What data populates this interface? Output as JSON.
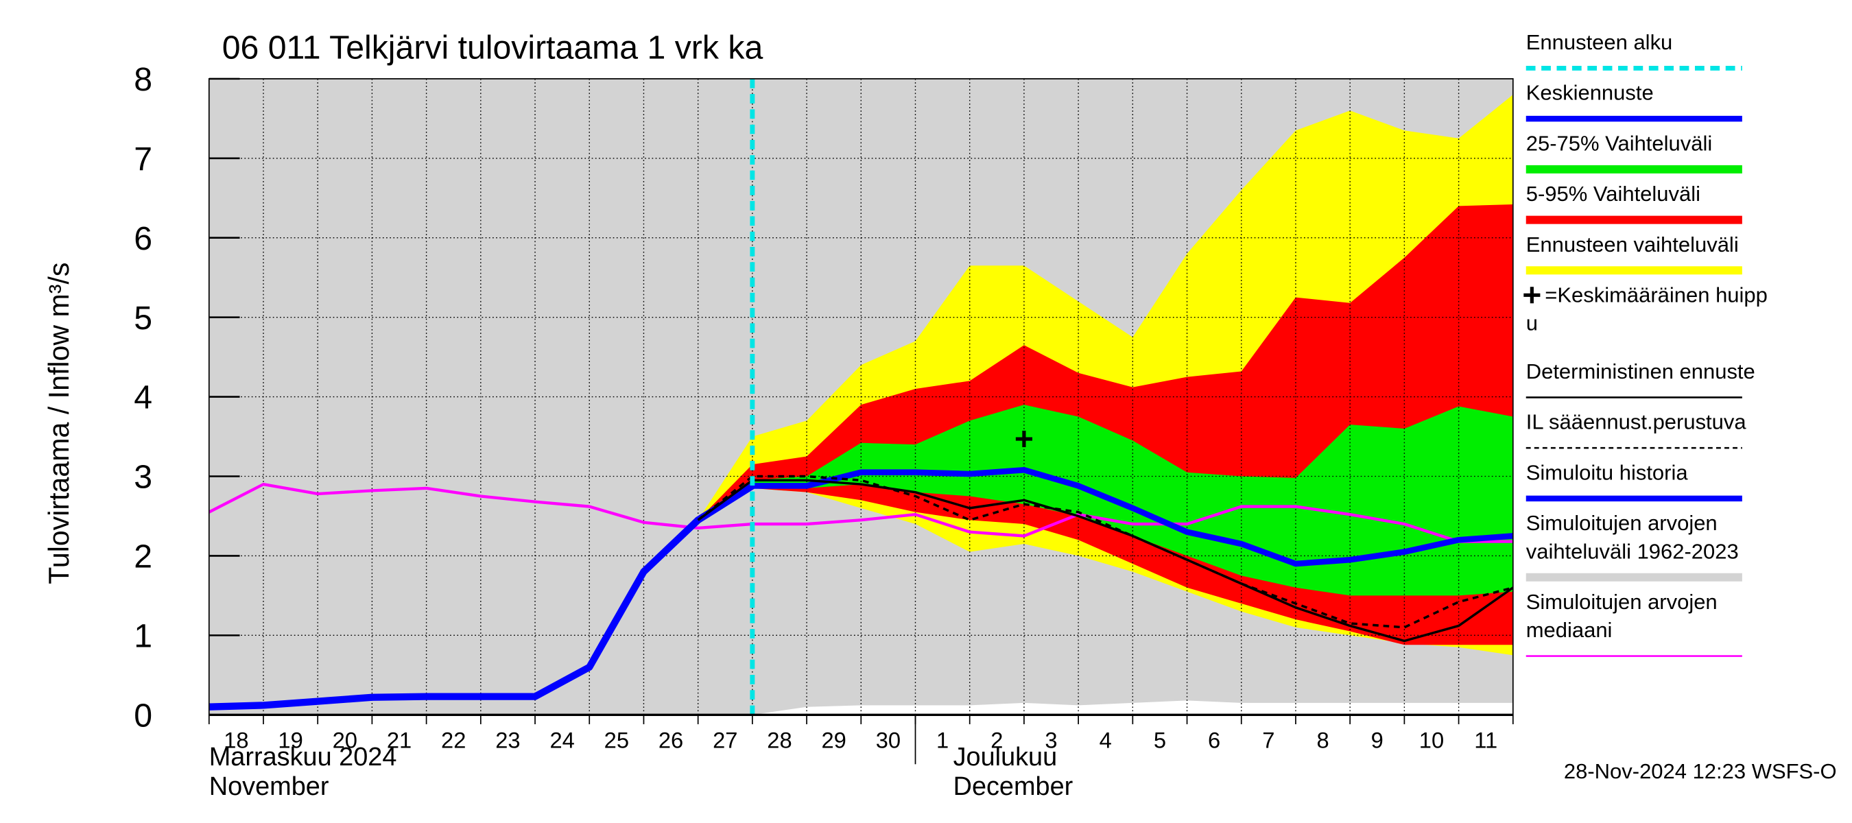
{
  "chart_data": {
    "type": "line",
    "title": "06 011 Telkjärvi tulovirtaama 1 vrk ka",
    "y_label": "Tulovirtaama / Inflow   m³/s",
    "categories": [
      "18",
      "19",
      "20",
      "21",
      "22",
      "23",
      "24",
      "25",
      "26",
      "27",
      "28",
      "29",
      "30",
      "1",
      "2",
      "3",
      "4",
      "5",
      "6",
      "7",
      "8",
      "9",
      "10",
      "11",
      null
    ],
    "month_labels": [
      {
        "lines": [
          "Marraskuu 2024",
          "November"
        ],
        "at_index": 0
      },
      {
        "lines": [
          "Joulukuu",
          "December"
        ],
        "at_index": 14
      }
    ],
    "month_separator_index": 13,
    "ylim": [
      0,
      8
    ],
    "yticks": [
      0,
      1,
      2,
      3,
      4,
      5,
      6,
      7,
      8
    ],
    "grid": true,
    "footer": "28-Nov-2024 12:23 WSFS-O",
    "series": [
      {
        "name": [
          "Ennusteen alku"
        ],
        "kind": "vline",
        "color": "#00e5e5",
        "at_index": 10
      },
      {
        "name": [
          "Keskiennuste"
        ],
        "kind": "line",
        "color": "#0000ff",
        "width": 5,
        "values": [
          null,
          null,
          null,
          null,
          null,
          null,
          null,
          null,
          null,
          null,
          2.88,
          2.88,
          3.05,
          3.05,
          3.03,
          3.08,
          2.88,
          2.6,
          2.3,
          2.15,
          1.9,
          1.95,
          2.05,
          2.2,
          2.25
        ]
      },
      {
        "name": [
          "25-75% Vaihteluväli"
        ],
        "kind": "band",
        "color": "#00ee00",
        "upper": [
          null,
          null,
          null,
          null,
          null,
          null,
          null,
          null,
          null,
          2.45,
          2.95,
          3.0,
          3.42,
          3.4,
          3.7,
          3.9,
          3.75,
          3.45,
          3.05,
          3.0,
          2.98,
          3.65,
          3.6,
          3.88,
          3.75
        ],
        "lower": [
          null,
          null,
          null,
          null,
          null,
          null,
          null,
          null,
          null,
          2.45,
          2.85,
          2.85,
          2.9,
          2.8,
          2.75,
          2.65,
          2.5,
          2.25,
          2.0,
          1.75,
          1.6,
          1.5,
          1.5,
          1.5,
          1.55
        ]
      },
      {
        "name": [
          "5-95% Vaihteluväli"
        ],
        "kind": "band",
        "color": "#ff0000",
        "upper": [
          null,
          null,
          null,
          null,
          null,
          null,
          null,
          null,
          null,
          2.45,
          3.15,
          3.25,
          3.9,
          4.1,
          4.2,
          4.65,
          4.3,
          4.12,
          4.25,
          4.32,
          5.25,
          5.18,
          5.75,
          6.4,
          6.42
        ],
        "lower": [
          null,
          null,
          null,
          null,
          null,
          null,
          null,
          null,
          null,
          2.45,
          2.85,
          2.8,
          2.7,
          2.55,
          2.45,
          2.4,
          2.2,
          1.9,
          1.6,
          1.4,
          1.2,
          1.05,
          0.88,
          0.88,
          0.88
        ]
      },
      {
        "name": [
          "Ennusteen vaihteluväli"
        ],
        "kind": "band",
        "color": "#ffff00",
        "upper": [
          null,
          null,
          null,
          null,
          null,
          null,
          null,
          null,
          null,
          2.45,
          3.5,
          3.7,
          4.4,
          4.7,
          5.65,
          5.65,
          5.2,
          4.75,
          5.8,
          6.6,
          7.35,
          7.6,
          7.35,
          7.25,
          7.8
        ],
        "lower": [
          null,
          null,
          null,
          null,
          null,
          null,
          null,
          null,
          null,
          2.45,
          2.85,
          2.8,
          2.6,
          2.4,
          2.05,
          2.15,
          2.0,
          1.8,
          1.55,
          1.3,
          1.1,
          1.0,
          0.9,
          0.85,
          0.75
        ]
      },
      {
        "name": [
          "=Keskimääräinen huipp",
          "u"
        ],
        "kind": "peak",
        "color": "#000000",
        "at_index": 15,
        "value": 3.47
      },
      {
        "name": [
          "Deterministinen ennuste"
        ],
        "kind": "line",
        "color": "#000000",
        "width": 2,
        "values": [
          null,
          null,
          null,
          null,
          null,
          null,
          null,
          null,
          null,
          2.45,
          2.95,
          2.95,
          2.9,
          2.8,
          2.6,
          2.7,
          2.5,
          2.25,
          1.95,
          1.65,
          1.35,
          1.12,
          0.93,
          1.12,
          1.6
        ]
      },
      {
        "name": [
          "IL sääennust.perustuva"
        ],
        "kind": "line",
        "color": "#000000",
        "width": 2,
        "dashed": true,
        "values": [
          null,
          null,
          null,
          null,
          null,
          null,
          null,
          null,
          null,
          2.45,
          3.0,
          3.0,
          2.95,
          2.75,
          2.45,
          2.65,
          2.55,
          2.25,
          1.95,
          1.65,
          1.4,
          1.15,
          1.1,
          1.42,
          1.6
        ]
      },
      {
        "name": [
          "Simuloitu historia"
        ],
        "kind": "line",
        "color": "#0000ff",
        "width": 6,
        "values": [
          0.1,
          0.12,
          0.17,
          0.22,
          0.23,
          0.23,
          0.23,
          0.6,
          1.8,
          2.45,
          2.88,
          null,
          null,
          null,
          null,
          null,
          null,
          null,
          null,
          null,
          null,
          null,
          null,
          null,
          null
        ]
      },
      {
        "name": [
          "Simuloitujen arvojen",
          "vaihteluväli 1962-2023"
        ],
        "kind": "band",
        "color": "#d3d3d3",
        "upper": [
          8,
          8,
          8,
          8,
          8,
          8,
          8,
          8,
          8,
          8,
          8,
          8,
          8,
          8,
          8,
          8,
          8,
          8,
          8,
          8,
          8,
          8,
          8,
          8,
          8
        ],
        "lower": [
          0,
          0,
          0,
          0,
          0,
          0,
          0,
          0,
          0,
          0,
          0,
          0.1,
          0.12,
          0.12,
          0.12,
          0.15,
          0.12,
          0.15,
          0.18,
          0.15,
          0.15,
          0.15,
          0.15,
          0.15,
          0.15
        ]
      },
      {
        "name": [
          "Simuloitujen arvojen",
          "mediaani"
        ],
        "kind": "line",
        "color": "#ff00ff",
        "width": 2.5,
        "values": [
          2.55,
          2.9,
          2.78,
          2.82,
          2.85,
          2.75,
          2.68,
          2.62,
          2.42,
          2.35,
          2.4,
          2.4,
          2.45,
          2.52,
          2.3,
          2.25,
          2.52,
          2.4,
          2.4,
          2.62,
          2.62,
          2.52,
          2.4,
          2.18,
          2.18
        ]
      }
    ]
  }
}
